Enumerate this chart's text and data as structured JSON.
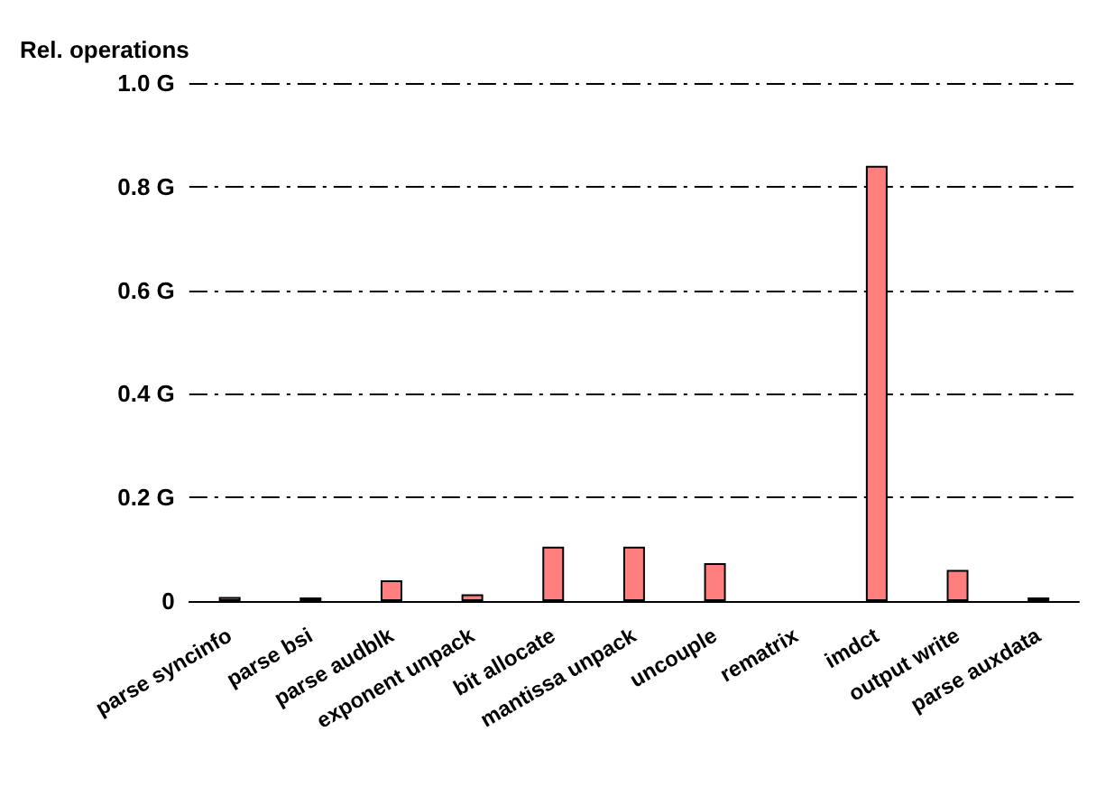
{
  "chart_data": {
    "type": "bar",
    "ylabel": "Rel. operations",
    "categories": [
      "parse syncinfo",
      "parse bsi",
      "parse audblk",
      "exponent unpack",
      "bit allocate",
      "mantissa unpack",
      "uncouple",
      "rematrix",
      "imdct",
      "output write",
      "parse auxdata"
    ],
    "values": [
      0.008,
      0.007,
      0.04,
      0.013,
      0.105,
      0.105,
      0.073,
      null,
      0.84,
      0.06,
      0.007
    ],
    "color": "#ff7f7f",
    "ylim": [
      0,
      1.0
    ],
    "yticks": [
      {
        "value": 0,
        "label": "0"
      },
      {
        "value": 0.2,
        "label": "0.2 G"
      },
      {
        "value": 0.4,
        "label": "0.4 G"
      },
      {
        "value": 0.6,
        "label": "0.6 G"
      },
      {
        "value": 0.8,
        "label": "0.8 G"
      },
      {
        "value": 1.0,
        "label": "1.0 G"
      }
    ],
    "grid": "y"
  }
}
